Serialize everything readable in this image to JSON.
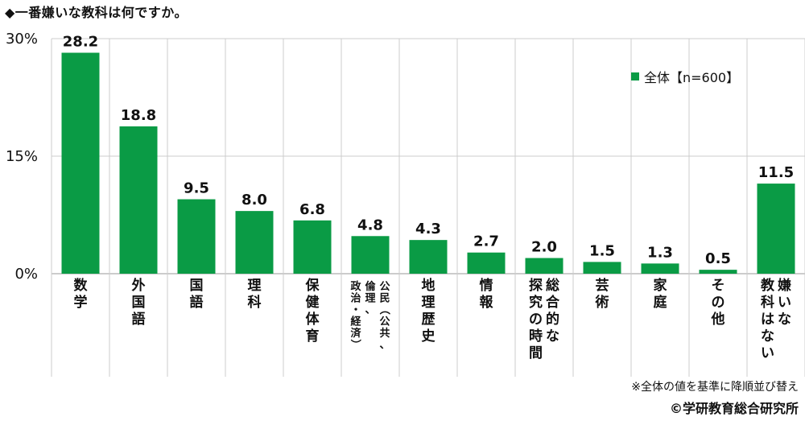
{
  "title": "◆一番嫌いな教科は何ですか。",
  "footnote": "※全体の値を基準に降順並び替え",
  "credit": "©学研教育総合研究所",
  "legend": {
    "label": "全体【n=600】"
  },
  "colors": {
    "bar": "#0a9b45",
    "grid": "#cccccc",
    "axis": "#999999"
  },
  "chart_data": {
    "type": "bar",
    "categories": [
      "数学",
      "外国語",
      "国語",
      "理科",
      "保健体育",
      "公民（公共、倫理、政治・経済）",
      "地理歴史",
      "情報",
      "総合的な探究の時間",
      "芸術",
      "家庭",
      "その他",
      "嫌いな教科はない"
    ],
    "category_lines": [
      [
        "数学"
      ],
      [
        "外国語"
      ],
      [
        "国語"
      ],
      [
        "理科"
      ],
      [
        "保健体育"
      ],
      [
        "公民（公共、",
        "倫理、",
        "政治・経済）"
      ],
      [
        "地理歴史"
      ],
      [
        "情報"
      ],
      [
        "総合的な",
        "探究の時間"
      ],
      [
        "芸術"
      ],
      [
        "家庭"
      ],
      [
        "その他"
      ],
      [
        "嫌いな",
        "教科はない"
      ]
    ],
    "series": [
      {
        "name": "全体【n=600】",
        "values": [
          28.2,
          18.8,
          9.5,
          8.0,
          6.8,
          4.8,
          4.3,
          2.7,
          2.0,
          1.5,
          1.3,
          0.5,
          11.5
        ]
      }
    ],
    "value_labels": [
      "28.2",
      "18.8",
      "9.5",
      "8.0",
      "6.8",
      "4.8",
      "4.3",
      "2.7",
      "2.0",
      "1.5",
      "1.3",
      "0.5",
      "11.5"
    ],
    "yticks": [
      0,
      15,
      30
    ],
    "ytick_labels": [
      "0%",
      "15%",
      "30%"
    ],
    "ylim": [
      0,
      30
    ],
    "grid": true,
    "legend_position": "top-right"
  }
}
